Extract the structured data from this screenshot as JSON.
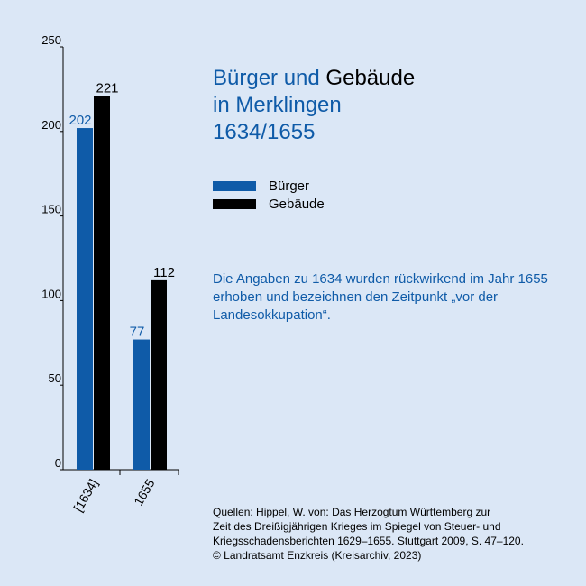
{
  "title": {
    "line1_blue": "Bürger und ",
    "line1_black": "Gebäude",
    "line2": "in Merklingen",
    "line3": "1634/1655"
  },
  "legend": [
    {
      "label": "Bürger",
      "color": "#0f5ba8"
    },
    {
      "label": "Gebäude",
      "color": "#000000"
    }
  ],
  "note": "Die Angaben zu 1634 wurden rückwirkend im Jahr 1655 erhoben und bezeichnen den Zeitpunkt „vor der Landesokkupation“.",
  "sources": [
    "Quellen: Hippel, W. von: Das Herzogtum Württemberg zur",
    "Zeit des Dreißigjährigen Krieges im Spiegel von Steuer- und",
    "Kriegsschadensberichten 1629–1655. Stuttgart 2009, S. 47–120.",
    "© Landratsamt Enzkreis (Kreisarchiv, 2023)"
  ],
  "chart_data": {
    "type": "bar",
    "categories": [
      "[1634]",
      "1655"
    ],
    "series": [
      {
        "name": "Bürger",
        "values": [
          202,
          77
        ],
        "color": "#0f5ba8"
      },
      {
        "name": "Gebäude",
        "values": [
          221,
          112
        ],
        "color": "#000000"
      }
    ],
    "ylim": [
      0,
      250
    ],
    "yticks": [
      0,
      50,
      100,
      150,
      200,
      250
    ],
    "data_labels": true,
    "legend_position": "right"
  }
}
